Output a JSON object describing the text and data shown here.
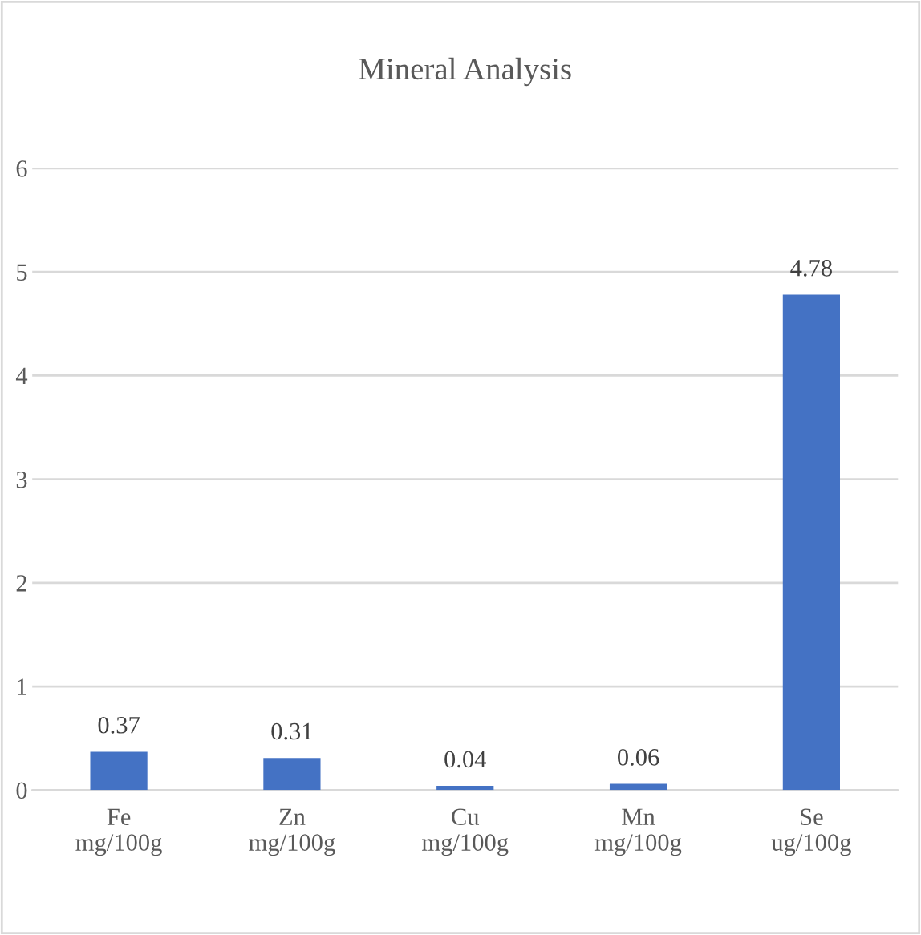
{
  "chart_data": {
    "type": "bar",
    "title": "Mineral Analysis",
    "categories": [
      "Fe\nmg/100g",
      "Zn\nmg/100g",
      "Cu\nmg/100g",
      "Mn\nmg/100g",
      "Se\nug/100g"
    ],
    "values": [
      0.37,
      0.31,
      0.04,
      0.06,
      4.78
    ],
    "color": "#4472c4",
    "data_labels": true,
    "ylim": [
      0,
      6
    ],
    "yticks": [
      0,
      1,
      2,
      3,
      4,
      5,
      6
    ],
    "grid": "y",
    "legend": false
  }
}
